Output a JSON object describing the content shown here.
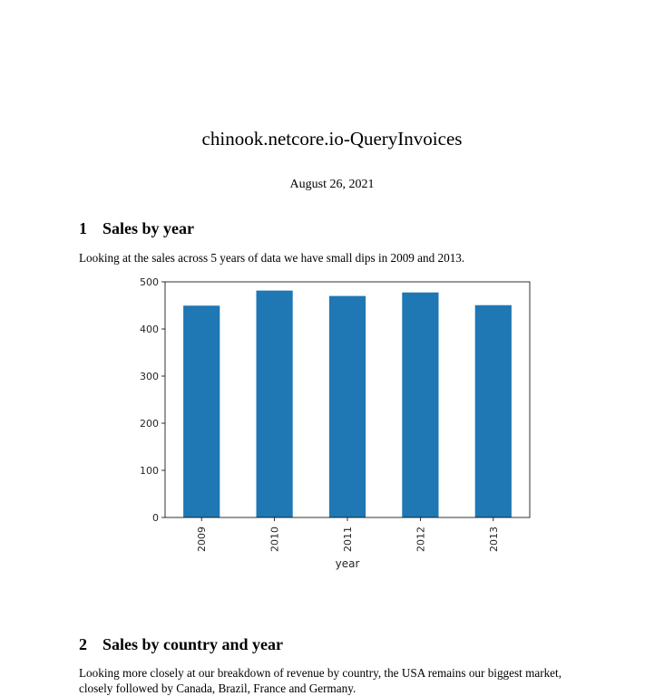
{
  "document": {
    "title": "chinook.netcore.io-QueryInvoices",
    "date": "August 26, 2021"
  },
  "sections": [
    {
      "number": "1",
      "heading": "Sales by year",
      "paragraph": "Looking at the sales across 5 years of data we have small dips in 2009 and 2013."
    },
    {
      "number": "2",
      "heading": "Sales by country and year",
      "paragraph": "Looking more closely at our breakdown of revenue by country, the USA remains our biggest market, closely followed by Canada, Brazil, France and Germany."
    }
  ],
  "chart_data": {
    "type": "bar",
    "categories": [
      "2009",
      "2010",
      "2011",
      "2012",
      "2013"
    ],
    "values": [
      449.5,
      481.5,
      470,
      477.5,
      450.5
    ],
    "title": "",
    "xlabel": "year",
    "ylabel": "",
    "ylim": [
      0,
      500
    ],
    "yticks": [
      0,
      100,
      200,
      300,
      400,
      500
    ],
    "bar_color": "#1f77b4",
    "grid": false,
    "legend": "none"
  }
}
